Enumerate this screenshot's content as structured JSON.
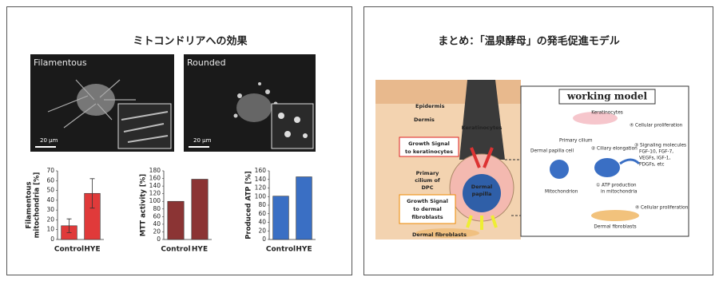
{
  "left_slide": {
    "title": "ミトコンドリアへの効果",
    "images": [
      {
        "label": "Filamentous",
        "scale": "20 μm"
      },
      {
        "label": "Rounded",
        "scale": "20 μm"
      }
    ]
  },
  "chart_data": [
    {
      "type": "bar",
      "ylabel": [
        "Filamentous",
        "mitochondria [%]"
      ],
      "categories": [
        "Control",
        "HYE"
      ],
      "values": [
        14,
        47
      ],
      "errors": [
        7,
        15
      ],
      "color": "#e03a3a",
      "ylim": [
        0,
        70
      ],
      "yticks": [
        0,
        10,
        20,
        30,
        40,
        50,
        60,
        70
      ]
    },
    {
      "type": "bar",
      "ylabel": [
        "MTT activity [%]"
      ],
      "categories": [
        "Control",
        "HYE"
      ],
      "values": [
        100,
        158
      ],
      "color": "#8b3434",
      "ylim": [
        0,
        180
      ],
      "yticks": [
        0,
        20,
        40,
        60,
        80,
        100,
        120,
        140,
        160,
        180
      ]
    },
    {
      "type": "bar",
      "ylabel": [
        "Produced ATP [%]"
      ],
      "categories": [
        "Control",
        "HYE"
      ],
      "values": [
        101,
        146
      ],
      "color": "#3a6fc4",
      "ylim": [
        0,
        160
      ],
      "yticks": [
        0,
        20,
        40,
        60,
        80,
        100,
        120,
        140,
        160
      ]
    }
  ],
  "right_slide": {
    "title": "まとめ：「温泉酵母」の発毛促進モデル",
    "diagram": {
      "epidermis": "Epidermis",
      "dermis": "Dermis",
      "keratinocytes": "Keratinocytes",
      "growth_signal_keratinocytes": [
        "Growth Signal",
        "to keratinocytes"
      ],
      "primary_cilium_dpc": [
        "Primary",
        "cilium of",
        "DPC"
      ],
      "growth_signal_fibroblasts": [
        "Growth Signal",
        "to dermal",
        "fibroblasts"
      ],
      "dermal_papilla": [
        "Dermal",
        "papilla"
      ],
      "dermal_fibroblasts": "Dermal fibroblasts"
    },
    "model": {
      "title": "working model",
      "keratinocytes": "Keratinocytes",
      "proliferation_top": "④ Cellular proliferation",
      "primary_cilium": "Primary cilium",
      "ciliary_elongation": "② Ciliary elongation",
      "dermal_papilla_cell": "Dermal papilla cell",
      "signaling": [
        "③ Signaling molecules",
        "FGF-10, FGF-7,",
        "VEGFs, IGF-1,",
        "PDGFs, etc"
      ],
      "mitochondrion": "Mitochondrion",
      "atp": [
        "① ATP production",
        "in mitochondria"
      ],
      "proliferation_bottom": "④ Cellular proliferation",
      "dermal_fibroblasts": "Dermal fibroblasts"
    }
  }
}
